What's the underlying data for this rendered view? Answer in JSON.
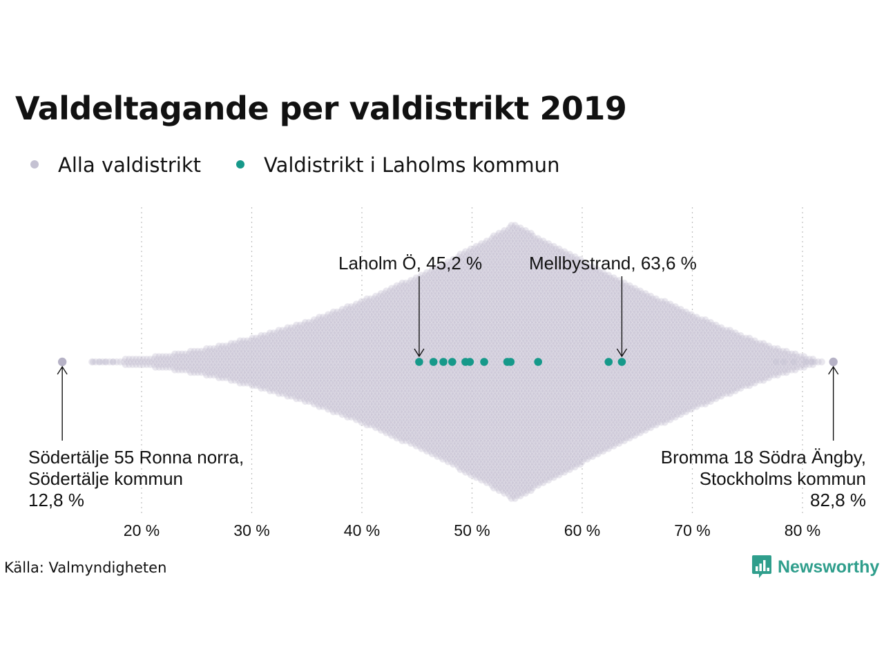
{
  "title": "Valdeltagande per valdistrikt 2019",
  "legend": {
    "all": {
      "label": "Alla valdistrikt",
      "color": "#c4c1d2"
    },
    "laholm": {
      "label": "Valdistrikt i Laholms kommun",
      "color": "#16998a"
    }
  },
  "annotations": {
    "laholm_o": "Laholm Ö, 45,2 %",
    "mellbystrand": "Mellbystrand, 63,6 %",
    "min": {
      "line1": "Södertälje 55 Ronna norra,",
      "line2": "Södertälje kommun",
      "line3": "12,8 %"
    },
    "max": {
      "line1": "Bromma 18 Södra Ängby,",
      "line2": "Stockholms kommun",
      "line3": "82,8 %"
    }
  },
  "source": "Källa: Valmyndigheten",
  "logo": {
    "text": "Newsworthy",
    "icon": "bar-chart-bubble-icon",
    "color": "#2f9e8c"
  },
  "chart_data": {
    "type": "scatter",
    "subtype": "beeswarm",
    "x_unit": "%",
    "xlim": [
      10,
      85
    ],
    "x_ticks": [
      20,
      30,
      40,
      50,
      60,
      70,
      80
    ],
    "x_tick_labels": [
      "20 %",
      "30 %",
      "40 %",
      "50 %",
      "60 %",
      "70 %",
      "80 %"
    ],
    "grid": "vertical-dotted",
    "legend_position": "top-left",
    "series": [
      {
        "name": "Alla valdistrikt",
        "color": "#c4c1d2",
        "distribution": {
          "min": 12.8,
          "max": 82.8,
          "peak": 53.8
        },
        "highlighted": [
          12.8,
          82.8
        ]
      },
      {
        "name": "Valdistrikt i Laholms kommun",
        "color": "#16998a",
        "values": [
          45.2,
          46.5,
          47.4,
          48.2,
          49.4,
          49.8,
          51.1,
          53.2,
          53.5,
          56.0,
          62.4,
          63.6
        ]
      }
    ]
  }
}
